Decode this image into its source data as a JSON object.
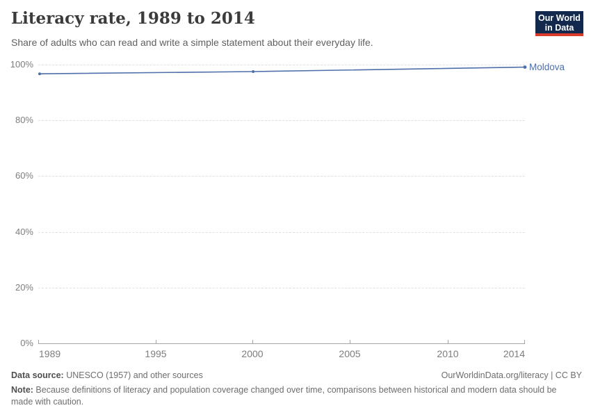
{
  "header": {
    "title": "Literacy rate, 1989 to 2014",
    "subtitle": "Share of adults who can read and write a simple statement about their everyday life.",
    "logo": {
      "line1": "Our World",
      "line2": "in Data",
      "bg_color": "#12294d",
      "accent_color": "#d93a2b"
    }
  },
  "chart_data": {
    "type": "line",
    "title": "Literacy rate, 1989 to 2014",
    "xlabel": "",
    "ylabel": "",
    "xlim": [
      1989,
      2014
    ],
    "ylim": [
      0,
      100
    ],
    "grid": "horizontal-dashed",
    "legend_position": "end-of-line-label",
    "x_ticks": [
      "1989",
      "1995",
      "2000",
      "2005",
      "2010",
      "2014"
    ],
    "y_ticks": [
      "100%",
      "80%",
      "60%",
      "40%",
      "20%",
      "0%"
    ],
    "series": [
      {
        "name": "Moldova",
        "color": "#4e6fa9",
        "x": [
          1989,
          2000,
          2014
        ],
        "values": [
          96.7,
          97.5,
          99.1
        ]
      }
    ]
  },
  "footer": {
    "source_label": "Data source:",
    "source_text": " UNESCO (1957) and other sources",
    "link_text": "OurWorldinData.org/literacy | CC BY",
    "note_label": "Note:",
    "note_text": " Because definitions of literacy and population coverage changed over time, comparisons between historical and modern data should be made with caution."
  }
}
